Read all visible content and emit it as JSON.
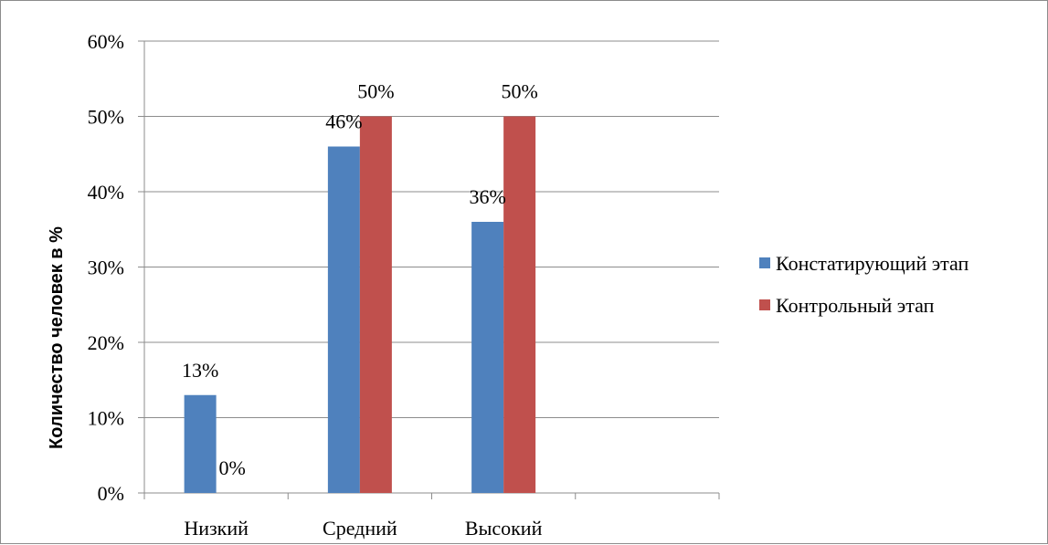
{
  "chart_data": {
    "type": "bar",
    "categories": [
      "Низкий",
      "Средний",
      "Высокий",
      ""
    ],
    "series": [
      {
        "name": "Констатирующий этап",
        "values": [
          13,
          46,
          36,
          null
        ],
        "labels": [
          "13%",
          "46%",
          "36%",
          ""
        ],
        "color": "#4f81bd"
      },
      {
        "name": "Контрольный этап",
        "values": [
          0,
          50,
          50,
          null
        ],
        "labels": [
          "0%",
          "50%",
          "50%",
          ""
        ],
        "color": "#c0504d"
      }
    ],
    "title": "",
    "xlabel": "",
    "ylabel": "Количество человек в %",
    "ylim": [
      0,
      60
    ],
    "yticks": [
      "0%",
      "10%",
      "20%",
      "30%",
      "40%",
      "50%",
      "60%"
    ],
    "grid": true,
    "legend_position": "right"
  }
}
